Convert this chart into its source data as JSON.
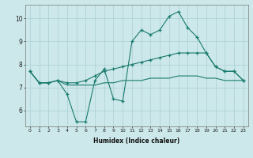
{
  "xlabel": "Humidex (Indice chaleur)",
  "x": [
    0,
    1,
    2,
    3,
    4,
    5,
    6,
    7,
    8,
    9,
    10,
    11,
    12,
    13,
    14,
    15,
    16,
    17,
    18,
    19,
    20,
    21,
    22,
    23
  ],
  "line1": [
    7.7,
    7.2,
    7.2,
    7.3,
    6.7,
    5.5,
    5.5,
    7.3,
    7.8,
    6.5,
    6.4,
    9.0,
    9.5,
    9.3,
    9.5,
    10.1,
    10.3,
    9.6,
    9.2,
    8.5,
    7.9,
    7.7,
    7.7,
    7.3
  ],
  "line2": [
    7.7,
    7.2,
    7.2,
    7.3,
    7.2,
    7.2,
    7.3,
    7.5,
    7.7,
    7.8,
    7.9,
    8.0,
    8.1,
    8.2,
    8.3,
    8.4,
    8.5,
    8.5,
    8.5,
    8.5,
    7.9,
    7.7,
    7.7,
    7.3
  ],
  "line3": [
    7.7,
    7.2,
    7.2,
    7.3,
    7.1,
    7.1,
    7.1,
    7.1,
    7.2,
    7.2,
    7.3,
    7.3,
    7.3,
    7.4,
    7.4,
    7.4,
    7.5,
    7.5,
    7.5,
    7.4,
    7.4,
    7.3,
    7.3,
    7.3
  ],
  "line_color": "#1a7a6e",
  "bg_color": "#cce8ea",
  "grid_color": "#aacfd4",
  "ylim": [
    5.3,
    10.6
  ],
  "xlim": [
    -0.5,
    23.5
  ],
  "yticks": [
    6,
    7,
    8,
    9,
    10
  ],
  "xticks": [
    0,
    1,
    2,
    3,
    4,
    5,
    6,
    7,
    8,
    9,
    10,
    11,
    12,
    13,
    14,
    15,
    16,
    17,
    18,
    19,
    20,
    21,
    22,
    23
  ]
}
